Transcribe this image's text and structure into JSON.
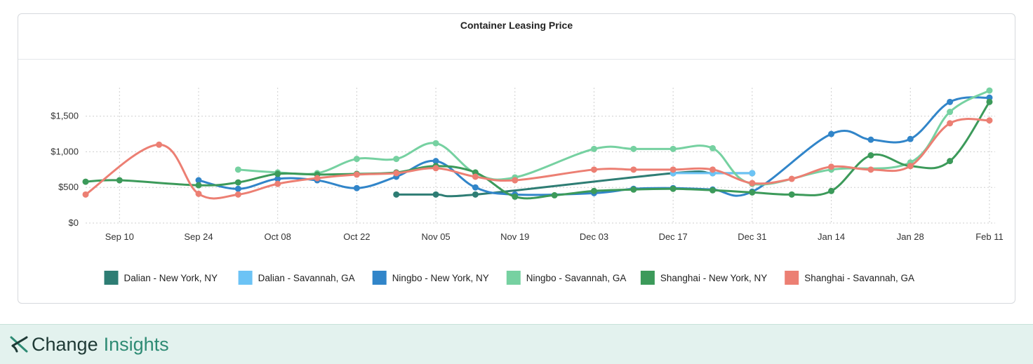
{
  "chart_data": {
    "type": "line",
    "title": "Container Leasing Price",
    "xlabel": "",
    "ylabel": "",
    "x_ticks": [
      "Sep 10",
      "Sep 24",
      "Oct 08",
      "Oct 22",
      "Nov 05",
      "Nov 19",
      "Dec 03",
      "Dec 17",
      "Dec 31",
      "Jan 14",
      "Jan 28",
      "Feb 11"
    ],
    "x_range": [
      "Sep 04",
      "Feb 12"
    ],
    "y_ticks": [
      "$0",
      "$500",
      "$1,000",
      "$1,500"
    ],
    "ylim": [
      0,
      1900
    ],
    "grid": true,
    "legend_position": "bottom",
    "series": [
      {
        "name": "Dalian - New York, NY",
        "color": "#2e7d74",
        "points": [
          [
            "Oct 29",
            400
          ],
          [
            "Nov 05",
            400
          ],
          [
            "Nov 12",
            400
          ],
          [
            "Dec 17",
            700
          ],
          [
            "Dec 24",
            700
          ],
          [
            "Dec 31",
            700
          ]
        ]
      },
      {
        "name": "Dalian - Savannah, GA",
        "color": "#6cc3f5",
        "points": [
          [
            "Dec 17",
            700
          ],
          [
            "Dec 24",
            700
          ],
          [
            "Dec 31",
            700
          ]
        ]
      },
      {
        "name": "Ningbo - New York, NY",
        "color": "#3185c9",
        "points": [
          [
            "Sep 24",
            600
          ],
          [
            "Oct 01",
            480
          ],
          [
            "Oct 08",
            620
          ],
          [
            "Oct 15",
            600
          ],
          [
            "Oct 22",
            490
          ],
          [
            "Oct 29",
            650
          ],
          [
            "Nov 05",
            870
          ],
          [
            "Nov 12",
            500
          ],
          [
            "Nov 19",
            400
          ],
          [
            "Dec 03",
            420
          ],
          [
            "Dec 10",
            480
          ],
          [
            "Dec 17",
            490
          ],
          [
            "Dec 24",
            470
          ],
          [
            "Dec 31",
            440
          ],
          [
            "Jan 14",
            1250
          ],
          [
            "Jan 21",
            1170
          ],
          [
            "Jan 28",
            1180
          ],
          [
            "Feb 04",
            1700
          ],
          [
            "Feb 11",
            1760
          ]
        ]
      },
      {
        "name": "Ningbo - Savannah, GA",
        "color": "#76d1a1",
        "points": [
          [
            "Oct 01",
            750
          ],
          [
            "Oct 08",
            710
          ],
          [
            "Oct 15",
            700
          ],
          [
            "Oct 22",
            900
          ],
          [
            "Oct 29",
            900
          ],
          [
            "Nov 05",
            1120
          ],
          [
            "Nov 12",
            700
          ],
          [
            "Nov 19",
            640
          ],
          [
            "Dec 03",
            1040
          ],
          [
            "Dec 10",
            1040
          ],
          [
            "Dec 17",
            1040
          ],
          [
            "Dec 24",
            1050
          ],
          [
            "Dec 31",
            550
          ],
          [
            "Jan 14",
            750
          ],
          [
            "Jan 28",
            850
          ],
          [
            "Feb 04",
            1560
          ],
          [
            "Feb 11",
            1860
          ]
        ]
      },
      {
        "name": "Shanghai - New York, NY",
        "color": "#3c9a5a",
        "points": [
          [
            "Sep 04",
            580
          ],
          [
            "Sep 10",
            600
          ],
          [
            "Sep 24",
            530
          ],
          [
            "Oct 01",
            570
          ],
          [
            "Oct 08",
            690
          ],
          [
            "Oct 15",
            680
          ],
          [
            "Oct 22",
            690
          ],
          [
            "Oct 29",
            710
          ],
          [
            "Nov 05",
            800
          ],
          [
            "Nov 12",
            710
          ],
          [
            "Nov 19",
            370
          ],
          [
            "Nov 26",
            390
          ],
          [
            "Dec 03",
            450
          ],
          [
            "Dec 10",
            470
          ],
          [
            "Dec 17",
            480
          ],
          [
            "Dec 24",
            460
          ],
          [
            "Dec 31",
            430
          ],
          [
            "Jan 07",
            400
          ],
          [
            "Jan 14",
            450
          ],
          [
            "Jan 21",
            950
          ],
          [
            "Jan 28",
            800
          ],
          [
            "Feb 04",
            870
          ],
          [
            "Feb 11",
            1700
          ]
        ]
      },
      {
        "name": "Shanghai - Savannah, GA",
        "color": "#ec7f73",
        "points": [
          [
            "Sep 04",
            400
          ],
          [
            "Sep 17",
            1100
          ],
          [
            "Sep 24",
            410
          ],
          [
            "Oct 01",
            400
          ],
          [
            "Oct 08",
            550
          ],
          [
            "Oct 15",
            630
          ],
          [
            "Oct 22",
            680
          ],
          [
            "Oct 29",
            700
          ],
          [
            "Nov 05",
            770
          ],
          [
            "Nov 12",
            650
          ],
          [
            "Nov 19",
            600
          ],
          [
            "Dec 03",
            750
          ],
          [
            "Dec 10",
            750
          ],
          [
            "Dec 17",
            750
          ],
          [
            "Dec 24",
            750
          ],
          [
            "Dec 31",
            560
          ],
          [
            "Jan 07",
            620
          ],
          [
            "Jan 14",
            790
          ],
          [
            "Jan 21",
            750
          ],
          [
            "Jan 28",
            800
          ],
          [
            "Feb 04",
            1400
          ],
          [
            "Feb 11",
            1440
          ]
        ]
      }
    ]
  },
  "brand": {
    "name": "Change",
    "suffix": "Insights",
    "accent": "#2e8b74"
  }
}
